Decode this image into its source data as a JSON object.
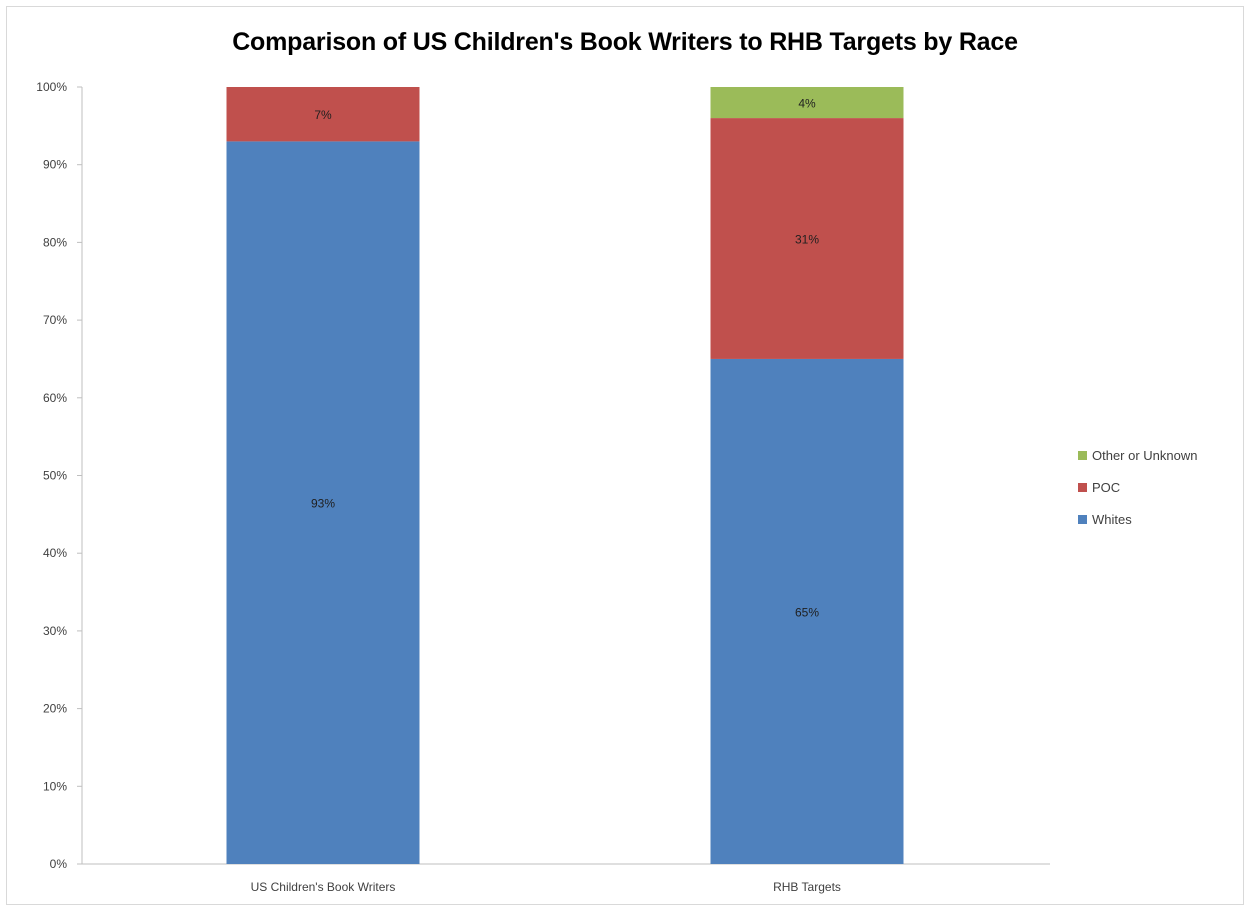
{
  "chart_data": {
    "type": "bar",
    "stacked": true,
    "title": "Comparison of US Children's Book Writers to RHB Targets by Race",
    "categories": [
      "US Children's Book Writers",
      "RHB Targets"
    ],
    "series": [
      {
        "name": "Whites",
        "values": [
          93,
          65
        ],
        "labels": [
          "93%",
          "65%"
        ],
        "color": "#4f81bd"
      },
      {
        "name": "POC",
        "values": [
          7,
          31
        ],
        "labels": [
          "7%",
          "31%"
        ],
        "color": "#c0504d"
      },
      {
        "name": "Other or Unknown",
        "values": [
          0,
          4
        ],
        "labels": [
          "",
          "4%"
        ],
        "color": "#9bbb59"
      }
    ],
    "legend_order": [
      "Other or Unknown",
      "POC",
      "Whites"
    ],
    "ylim": [
      0,
      100
    ],
    "yticks": [
      0,
      10,
      20,
      30,
      40,
      50,
      60,
      70,
      80,
      90,
      100
    ],
    "ytick_labels": [
      "0%",
      "10%",
      "20%",
      "30%",
      "40%",
      "50%",
      "60%",
      "70%",
      "80%",
      "90%",
      "100%"
    ],
    "xlabel": "",
    "ylabel": "",
    "grid": false,
    "legend_position": "right"
  }
}
